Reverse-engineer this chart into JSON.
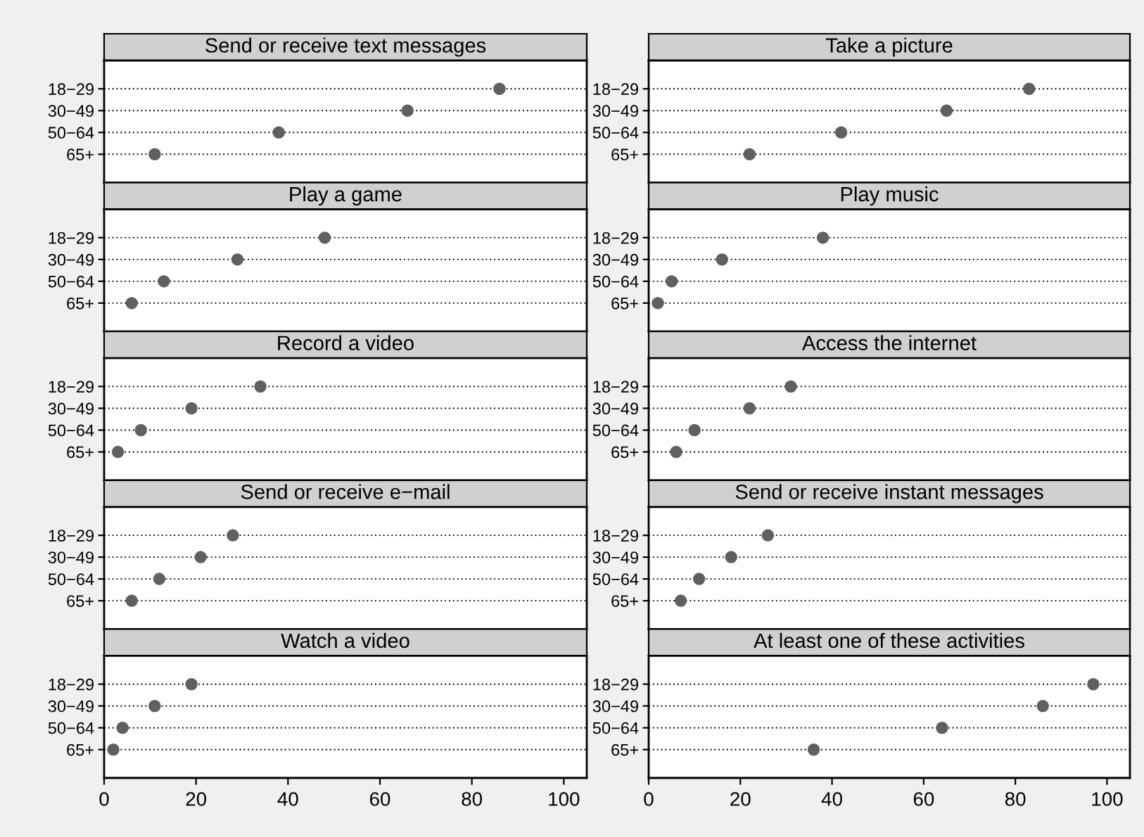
{
  "chart_data": [
    {
      "type": "scatter",
      "title": "Send or receive text messages",
      "categories": [
        "18−29",
        "30−49",
        "50−64",
        "65+"
      ],
      "values": [
        86,
        66,
        38,
        11
      ],
      "color": "#606060",
      "orientation": "horizontal",
      "xlim": [
        0,
        105
      ],
      "grid": "y",
      "marker": "circle",
      "tick_labels": "y"
    },
    {
      "type": "scatter",
      "title": "Take a picture",
      "categories": [
        "18−29",
        "30−49",
        "50−64",
        "65+"
      ],
      "values": [
        83,
        65,
        42,
        22
      ],
      "color": "#606060",
      "orientation": "horizontal",
      "xlim": [
        0,
        105
      ],
      "grid": "y",
      "marker": "circle",
      "tick_labels": "y"
    },
    {
      "type": "scatter",
      "title": "Play a game",
      "categories": [
        "18−29",
        "30−49",
        "50−64",
        "65+"
      ],
      "values": [
        48,
        29,
        13,
        6
      ],
      "color": "#606060",
      "orientation": "horizontal",
      "xlim": [
        0,
        105
      ],
      "grid": "y",
      "marker": "circle",
      "tick_labels": "y"
    },
    {
      "type": "scatter",
      "title": "Play music",
      "categories": [
        "18−29",
        "30−49",
        "50−64",
        "65+"
      ],
      "values": [
        38,
        16,
        5,
        2
      ],
      "color": "#606060",
      "orientation": "horizontal",
      "xlim": [
        0,
        105
      ],
      "grid": "y",
      "marker": "circle",
      "tick_labels": "y"
    },
    {
      "type": "scatter",
      "title": "Record a video",
      "categories": [
        "18−29",
        "30−49",
        "50−64",
        "65+"
      ],
      "values": [
        34,
        19,
        8,
        3
      ],
      "color": "#606060",
      "orientation": "horizontal",
      "xlim": [
        0,
        105
      ],
      "grid": "y",
      "marker": "circle",
      "tick_labels": "y"
    },
    {
      "type": "scatter",
      "title": "Access the internet",
      "categories": [
        "18−29",
        "30−49",
        "50−64",
        "65+"
      ],
      "values": [
        31,
        22,
        10,
        6
      ],
      "color": "#606060",
      "orientation": "horizontal",
      "xlim": [
        0,
        105
      ],
      "grid": "y",
      "marker": "circle",
      "tick_labels": "y"
    },
    {
      "type": "scatter",
      "title": "Send or receive e−mail",
      "categories": [
        "18−29",
        "30−49",
        "50−64",
        "65+"
      ],
      "values": [
        28,
        21,
        12,
        6
      ],
      "color": "#606060",
      "orientation": "horizontal",
      "xlim": [
        0,
        105
      ],
      "grid": "y",
      "marker": "circle",
      "tick_labels": "y"
    },
    {
      "type": "scatter",
      "title": "Send or receive instant messages",
      "categories": [
        "18−29",
        "30−49",
        "50−64",
        "65+"
      ],
      "values": [
        26,
        18,
        11,
        7
      ],
      "color": "#606060",
      "orientation": "horizontal",
      "xlim": [
        0,
        105
      ],
      "grid": "y",
      "marker": "circle",
      "tick_labels": "y"
    },
    {
      "type": "scatter",
      "title": "Watch a video",
      "categories": [
        "18−29",
        "30−49",
        "50−64",
        "65+"
      ],
      "values": [
        19,
        11,
        4,
        2
      ],
      "color": "#606060",
      "orientation": "horizontal",
      "xlim": [
        0,
        105
      ],
      "xticks": [
        0,
        20,
        40,
        60,
        80,
        100
      ],
      "grid": "y",
      "marker": "circle"
    },
    {
      "type": "scatter",
      "title": "At least one of these activities",
      "categories": [
        "18−29",
        "30−49",
        "50−64",
        "65+"
      ],
      "values": [
        97,
        86,
        64,
        36
      ],
      "color": "#606060",
      "orientation": "horizontal",
      "xlim": [
        0,
        105
      ],
      "xticks": [
        0,
        20,
        40,
        60,
        80,
        100
      ],
      "grid": "y",
      "marker": "circle"
    }
  ]
}
